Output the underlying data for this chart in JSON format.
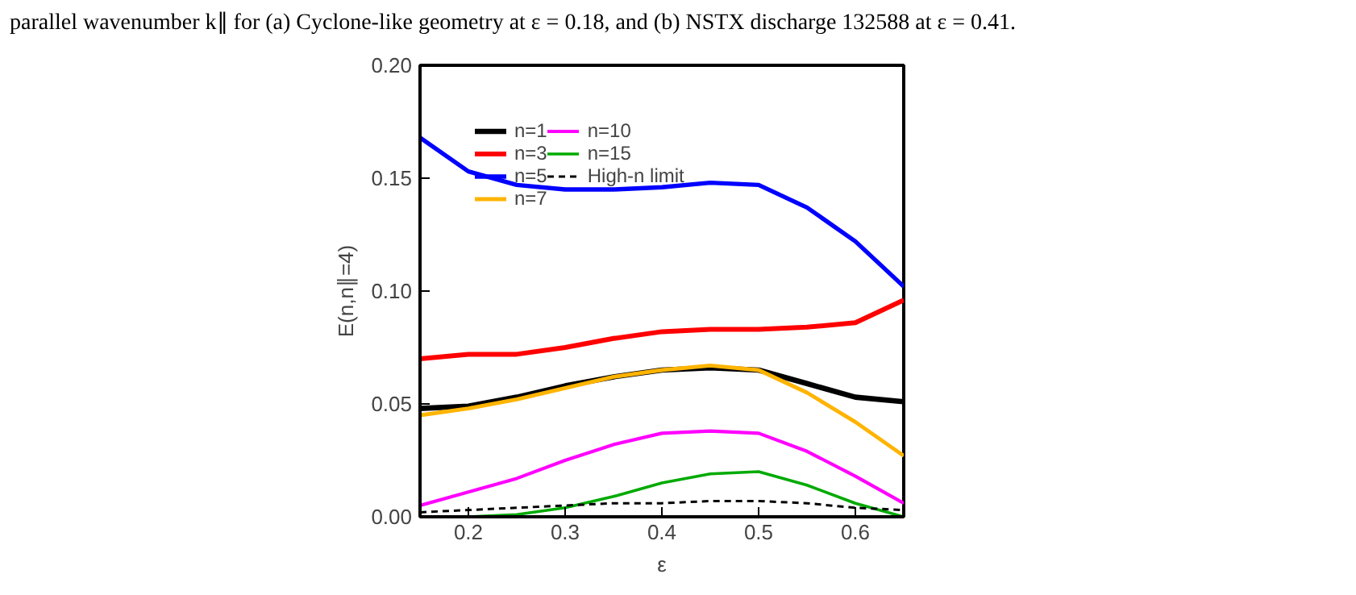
{
  "chart_data": {
    "type": "line",
    "xlabel": "ε",
    "ylabel": "E(n,n∥=4)",
    "annotations": [
      "parallel wavenumber k∥ for (a) Cyclone-like geometry at ε = 0.18, and (b) NSTX discharge 132588 at ε = 0.41."
    ],
    "x": [
      0.15,
      0.2,
      0.25,
      0.3,
      0.35,
      0.4,
      0.45,
      0.5,
      0.55,
      0.6,
      0.65
    ],
    "xlim": [
      0.15,
      0.65
    ],
    "xticks": [
      0.2,
      0.3,
      0.4,
      0.5,
      0.6
    ],
    "ylim": [
      0,
      0.2
    ],
    "yticks": [
      {
        "value": 0,
        "label": "0.00"
      },
      {
        "value": 0.05,
        "label": "0.05"
      },
      {
        "value": 0.1,
        "label": "0.10"
      },
      {
        "value": 0.15,
        "label": "0.15"
      },
      {
        "value": 0.2,
        "label": "0.20"
      }
    ],
    "grid": false,
    "legend": "top left",
    "line_style": "solid",
    "series": [
      {
        "name": "n=1",
        "color": "#000000",
        "values": [
          0.048,
          0.049,
          0.053,
          0.058,
          0.062,
          0.065,
          0.066,
          0.065,
          0.059,
          0.053,
          0.051
        ]
      },
      {
        "name": "n=3",
        "color": "#ff0000",
        "values": [
          0.07,
          0.072,
          0.072,
          0.075,
          0.079,
          0.082,
          0.083,
          0.083,
          0.084,
          0.086,
          0.096
        ]
      },
      {
        "name": "n=5",
        "color": "#0000ff",
        "values": [
          0.168,
          0.153,
          0.147,
          0.145,
          0.145,
          0.146,
          0.148,
          0.147,
          0.137,
          0.122,
          0.102
        ]
      },
      {
        "name": "n=7",
        "color": "#ffb400",
        "values": [
          0.045,
          0.048,
          0.052,
          0.057,
          0.062,
          0.065,
          0.067,
          0.065,
          0.055,
          0.042,
          0.027
        ]
      },
      {
        "name": "n=10",
        "color": "#ff00ff",
        "values": [
          0.005,
          0.011,
          0.017,
          0.025,
          0.032,
          0.037,
          0.038,
          0.037,
          0.029,
          0.018,
          0.006
        ]
      },
      {
        "name": "n=15",
        "color": "#00aa00",
        "values": [
          0.0,
          0.0,
          0.001,
          0.004,
          0.009,
          0.015,
          0.019,
          0.02,
          0.014,
          0.006,
          0.0
        ]
      },
      {
        "name": "High-n limit",
        "color": "#000000",
        "line_style": "dashed",
        "values": [
          0.002,
          0.003,
          0.004,
          0.005,
          0.006,
          0.006,
          0.007,
          0.007,
          0.006,
          0.004,
          0.003
        ]
      }
    ]
  }
}
